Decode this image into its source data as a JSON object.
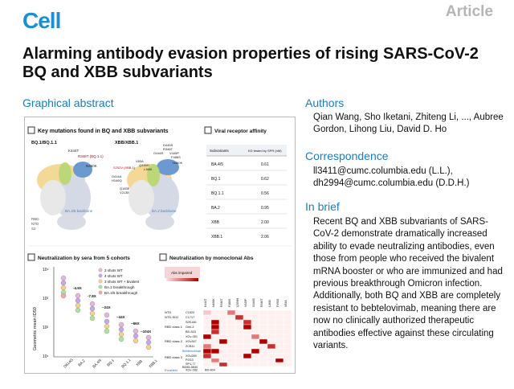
{
  "header": {
    "logo": "Cell",
    "article_type": "Article",
    "title": "Alarming antibody evasion properties of rising SARS-CoV-2 BQ and XBB subvariants"
  },
  "graphical_abstract": {
    "label": "Graphical abstract",
    "panels": {
      "mutations": {
        "title": "Key mutations found in BQ and XBB subvariants",
        "left_label": "BQ.1/BQ.1.1",
        "right_label": "XBB/XBB.1",
        "left_mutations": [
          "K444T",
          "N460K",
          "R346T (BQ.1.1)"
        ],
        "right_mutations": [
          "D445S",
          "R346T",
          "V445P",
          "F486S",
          "G446S",
          "N460K",
          "V83A",
          "Q339H",
          "L368I",
          "S252V (XBB.1)",
          "D414A",
          "H146Q",
          "Q183E",
          "V213E"
        ],
        "left_caption": "BA.4/5 backbone",
        "right_caption": "BA.2 backbone",
        "domain_labels": [
          "RBD",
          "NTD",
          "S2"
        ]
      },
      "receptor": {
        "title": "Viral receptor affinity",
        "col_headers": [
          "Subvariants",
          "KD tested by SPR (nM)"
        ],
        "rows": [
          [
            "BA.4/5",
            "0.61"
          ],
          [
            "BQ.1",
            "0.62"
          ],
          [
            "BQ.1.1",
            "0.56"
          ],
          [
            "BA.2",
            "0.95"
          ],
          [
            "XBB",
            "2.00"
          ],
          [
            "XBB.1",
            "2.06"
          ]
        ]
      },
      "sera": {
        "title": "Neutralization by sera from 5 cohorts",
        "ylabel": "Geometric mean ID50",
        "y_ticks": [
          "10⁴",
          "10³",
          "10²",
          "10¹"
        ],
        "x_labels": [
          "D614G",
          "BA.2",
          "BA.4/5",
          "BQ.1",
          "BQ.1.1",
          "XBB",
          "XBB.1"
        ],
        "legend": [
          "3 shots WT",
          "4 shots WT",
          "3 shots WT + bivalent",
          "BA.2 breakthrough",
          "BA.4/5 breakthrough"
        ],
        "fold_labels": [
          "-4.9X",
          "-7.8X",
          "~24X",
          "~44X",
          "~66X",
          "~104X"
        ]
      },
      "mabs": {
        "title": "Neutralization by monoclonal Abs",
        "legend_title": "Abs impaired",
        "groups": [
          {
            "label": "NTD",
            "abs": [
              "C1520"
            ]
          },
          {
            "label": "NTD-SD2",
            "abs": [
              "C1717"
            ]
          },
          {
            "label": "RBD class 1",
            "abs": [
              "S2K146",
              "Omi-3",
              "BD-515"
            ]
          },
          {
            "label": "RBD class 2",
            "abs": [
              "XGv-051",
              "XGv347",
              "ZCB11"
            ]
          },
          {
            "label": "RBD class 3",
            "abs": [
              "Bebtelovimab",
              "XGv289",
              "P2G3",
              "SP1-77",
              "BD55-5840",
              "XGv-282",
              "BD-804",
              "Evusheld"
            ]
          }
        ],
        "col_labels": [
          "K444T",
          "N460K",
          "R346T",
          "F486S",
          "Q339H",
          "V445P",
          "G446S",
          "R346T",
          "L368I",
          "F490S",
          "V83A"
        ]
      }
    }
  },
  "authors": {
    "heading": "Authors",
    "text": "Qian Wang, Sho Iketani, Zhiteng Li, ..., Aubree Gordon, Lihong Liu, David D. Ho"
  },
  "correspondence": {
    "heading": "Correspondence",
    "line1": "ll3411@cumc.columbia.edu (L.L.),",
    "line2": "dh2994@cumc.columbia.edu (D.D.H.)"
  },
  "brief": {
    "heading": "In brief",
    "text": "Recent BQ and XBB subvariants of SARS-CoV-2 demonstrate dramatically increased ability to evade neutralizing antibodies, even those from people who received the bivalent mRNA booster or who are immunized and had previous breakthrough Omicron infection. Additionally, both BQ and XBB are completely resistant to bebtelovimab, meaning there are now no clinically authorized therapeutic antibodies effective against these circulating variants."
  }
}
